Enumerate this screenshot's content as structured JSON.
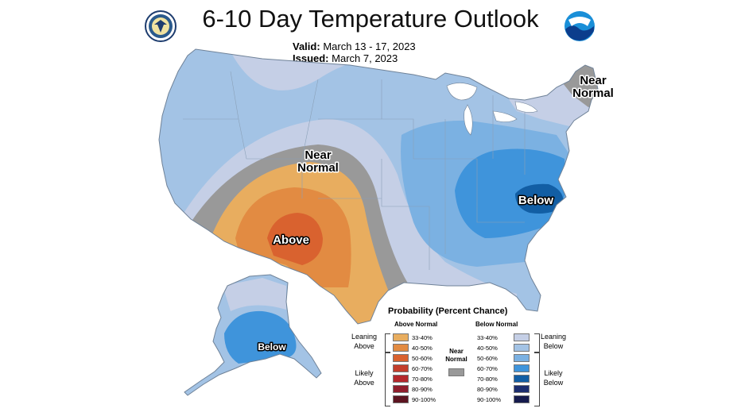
{
  "title": "6-10 Day Temperature Outlook",
  "valid_label": "Valid:",
  "valid_value": "March 13 - 17, 2023",
  "issued_label": "Issued:",
  "issued_value": "March 7, 2023",
  "map_labels": {
    "near_normal_west_1": "Near",
    "near_normal_west_2": "Normal",
    "near_normal_ne_1": "Near",
    "near_normal_ne_2": "Normal",
    "above": "Above",
    "below_east": "Below",
    "below_alaska": "Below"
  },
  "legend": {
    "title": "Probability (Percent Chance)",
    "above_header": "Above Normal",
    "below_header": "Below Normal",
    "near_normal_1": "Near",
    "near_normal_2": "Normal",
    "leaning_above_1": "Leaning",
    "leaning_above_2": "Above",
    "likely_above_1": "Likely",
    "likely_above_2": "Above",
    "leaning_below_1": "Leaning",
    "leaning_below_2": "Below",
    "likely_below_1": "Likely",
    "likely_below_2": "Below",
    "above_rows": [
      {
        "label": "33-40%",
        "color": "#e8ad5f"
      },
      {
        "label": "40-50%",
        "color": "#e28b42"
      },
      {
        "label": "50-60%",
        "color": "#d9622f"
      },
      {
        "label": "60-70%",
        "color": "#c33e2c"
      },
      {
        "label": "70-80%",
        "color": "#b4282c"
      },
      {
        "label": "80-90%",
        "color": "#8f1e2c"
      },
      {
        "label": "90-100%",
        "color": "#5c1420"
      }
    ],
    "below_rows": [
      {
        "label": "33-40%",
        "color": "#c5cfe6"
      },
      {
        "label": "40-50%",
        "color": "#a3c3e5"
      },
      {
        "label": "50-60%",
        "color": "#7bb1e2"
      },
      {
        "label": "60-70%",
        "color": "#3f94db"
      },
      {
        "label": "70-80%",
        "color": "#125ea4"
      },
      {
        "label": "80-90%",
        "color": "#1c2d6e"
      },
      {
        "label": "90-100%",
        "color": "#161b4d"
      }
    ],
    "near_normal_color": "#999999"
  }
}
